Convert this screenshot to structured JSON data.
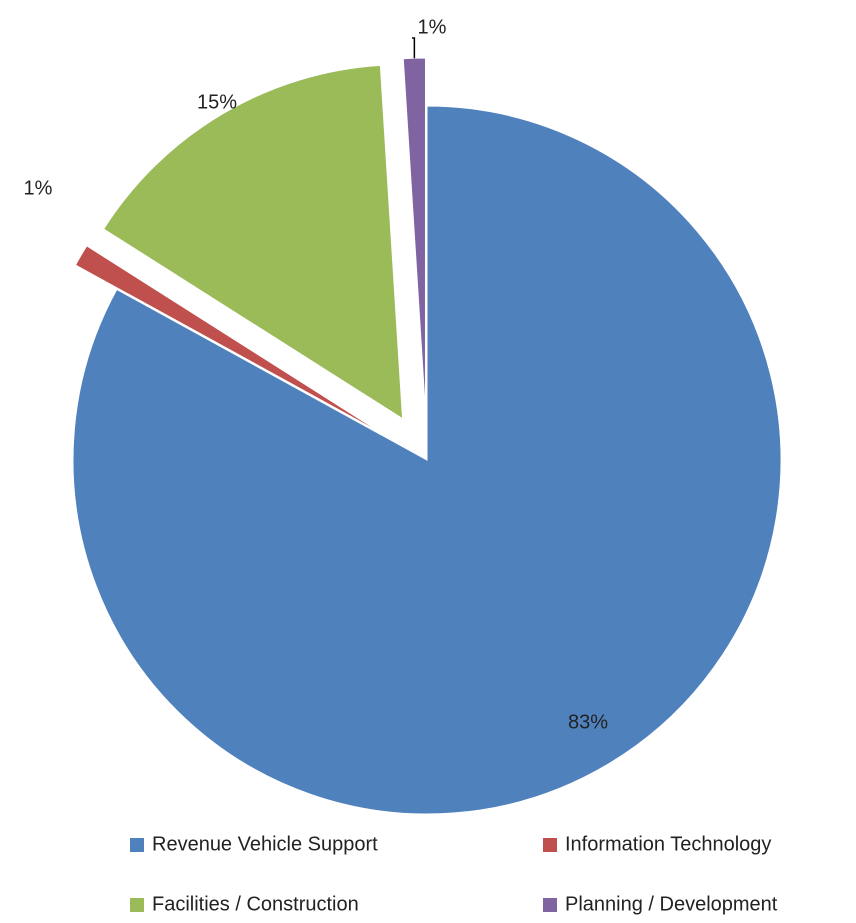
{
  "chart_data": {
    "type": "pie",
    "categories": [
      "Revenue Vehicle Support",
      "Information Technology",
      "Facilities / Construction",
      "Planning / Development"
    ],
    "values": [
      83,
      1,
      15,
      1
    ],
    "value_labels": [
      "83%",
      "1%",
      "15%",
      "1%"
    ],
    "colors": [
      "#4f81bd",
      "#c0504d",
      "#9bbb59",
      "#8064a2"
    ],
    "legend": "bottom"
  }
}
